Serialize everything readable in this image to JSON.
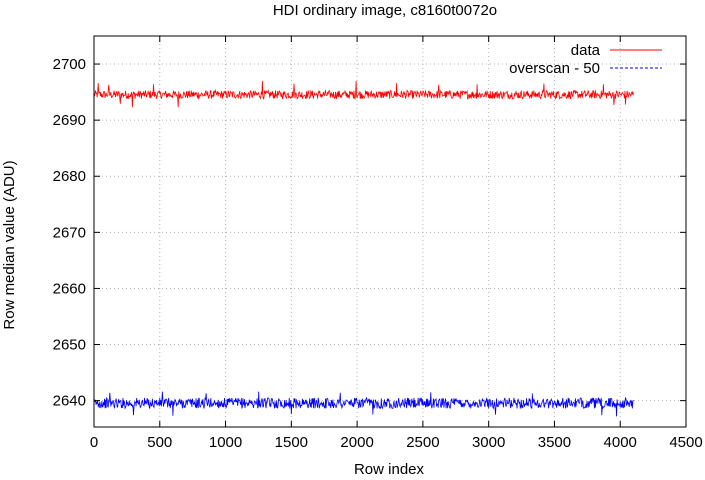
{
  "chart_data": {
    "type": "line",
    "title": "HDI ordinary image, c8160t0072o",
    "xlabel": "Row index",
    "ylabel": "Row median value (ADU)",
    "xlim": [
      0,
      4500
    ],
    "ylim": [
      2635.3,
      2705
    ],
    "xticks": [
      0,
      500,
      1000,
      1500,
      2000,
      2500,
      3000,
      3500,
      4000,
      4500
    ],
    "yticks": [
      2640,
      2650,
      2660,
      2670,
      2680,
      2690,
      2700
    ],
    "grid": true,
    "legend_position": "top-right",
    "series": [
      {
        "name": "data",
        "color": "#ff0000",
        "style": "solid",
        "x_range": [
          0,
          4100
        ],
        "center": 2694.5,
        "band": [
          2693.8,
          2695.3
        ],
        "spikes": [
          {
            "x": 30,
            "y": 2696.6
          },
          {
            "x": 110,
            "y": 2696.3
          },
          {
            "x": 200,
            "y": 2692.9
          },
          {
            "x": 290,
            "y": 2692.3
          },
          {
            "x": 450,
            "y": 2696.4
          },
          {
            "x": 640,
            "y": 2692.3
          },
          {
            "x": 1280,
            "y": 2697.0
          },
          {
            "x": 1520,
            "y": 2696.5
          },
          {
            "x": 1990,
            "y": 2697.0
          },
          {
            "x": 2300,
            "y": 2696.6
          },
          {
            "x": 2620,
            "y": 2696.3
          },
          {
            "x": 2910,
            "y": 2696.4
          },
          {
            "x": 3420,
            "y": 2696.5
          },
          {
            "x": 3870,
            "y": 2696.4
          },
          {
            "x": 3950,
            "y": 2692.7
          },
          {
            "x": 4040,
            "y": 2692.8
          }
        ]
      },
      {
        "name": "overscan - 50",
        "color": "#0000ff",
        "style": "dashed",
        "x_range": [
          0,
          4100
        ],
        "center": 2639.5,
        "band": [
          2638.6,
          2640.5
        ],
        "spikes": [
          {
            "x": 120,
            "y": 2641.4
          },
          {
            "x": 300,
            "y": 2637.4
          },
          {
            "x": 520,
            "y": 2641.6
          },
          {
            "x": 600,
            "y": 2637.3
          },
          {
            "x": 850,
            "y": 2641.3
          },
          {
            "x": 1250,
            "y": 2641.6
          },
          {
            "x": 1500,
            "y": 2637.6
          },
          {
            "x": 1870,
            "y": 2641.4
          },
          {
            "x": 2120,
            "y": 2637.5
          },
          {
            "x": 2560,
            "y": 2641.5
          },
          {
            "x": 3050,
            "y": 2637.5
          },
          {
            "x": 3330,
            "y": 2641.3
          },
          {
            "x": 3860,
            "y": 2637.4
          },
          {
            "x": 3970,
            "y": 2637.2
          }
        ]
      }
    ]
  }
}
